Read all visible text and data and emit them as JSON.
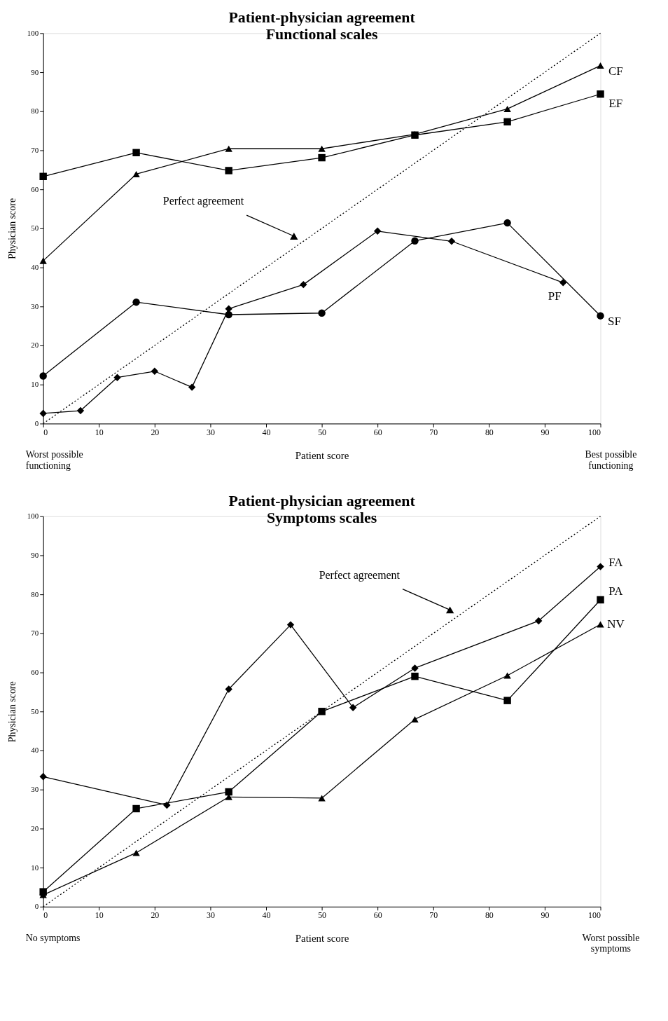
{
  "chart_data": [
    {
      "type": "line",
      "title": "Patient-physician agreement",
      "subtitle": "Functional scales",
      "xlabel": "Patient score",
      "ylabel": "Physician score",
      "xlim": [
        0,
        100
      ],
      "ylim": [
        0,
        100
      ],
      "xticks": [
        0,
        10,
        20,
        30,
        40,
        50,
        60,
        70,
        80,
        90,
        100
      ],
      "yticks": [
        0,
        10,
        20,
        30,
        40,
        50,
        60,
        70,
        80,
        90,
        100
      ],
      "grid": false,
      "legend": false,
      "series": [
        {
          "name": "CF",
          "color": "#000000",
          "marker": "triangle",
          "x": [
            0,
            16.7,
            33.3,
            50,
            66.7,
            83.3,
            100
          ],
          "values": [
            41.7,
            63.9,
            70.4,
            70.4,
            74.1,
            80.6,
            91.7
          ]
        },
        {
          "name": "EF",
          "color": "#000000",
          "marker": "square",
          "x": [
            0,
            16.7,
            33.3,
            50,
            66.7,
            83.3,
            100
          ],
          "values": [
            63.3,
            69.4,
            64.8,
            68.1,
            73.9,
            77.3,
            84.4
          ]
        },
        {
          "name": "PF",
          "color": "#000000",
          "marker": "diamond",
          "x": [
            0,
            6.7,
            13.3,
            20,
            26.7,
            33.3,
            46.7,
            60,
            73.3,
            93.3
          ],
          "values": [
            2.6,
            3.3,
            11.8,
            13.4,
            9.3,
            29.4,
            35.6,
            49.3,
            46.7,
            36.1
          ]
        },
        {
          "name": "SF",
          "color": "#000000",
          "marker": "circle",
          "x": [
            0,
            16.7,
            33.3,
            50,
            66.7,
            83.3,
            100
          ],
          "values": [
            12.2,
            31.1,
            27.9,
            28.3,
            46.8,
            51.4,
            27.6
          ]
        },
        {
          "color": "#000000",
          "marker": "none",
          "line_style": "dotted",
          "x": [
            0,
            100
          ],
          "values": [
            0,
            100
          ]
        }
      ],
      "annotations": [
        {
          "text": "Perfect agreement",
          "x": 45,
          "y": 48
        },
        "Worst possible\nfunctioning",
        "Best possible\nfunctioning"
      ]
    },
    {
      "type": "line",
      "title": "Patient-physician agreement",
      "subtitle": "Symptoms scales",
      "xlabel": "Patient score",
      "ylabel": "Physician score",
      "xlim": [
        0,
        100
      ],
      "ylim": [
        0,
        100
      ],
      "xticks": [
        0,
        10,
        20,
        30,
        40,
        50,
        60,
        70,
        80,
        90,
        100
      ],
      "yticks": [
        0,
        10,
        20,
        30,
        40,
        50,
        60,
        70,
        80,
        90,
        100
      ],
      "grid": false,
      "legend": false,
      "series": [
        {
          "name": "FA",
          "color": "#000000",
          "marker": "diamond",
          "x": [
            0,
            22.2,
            33.3,
            44.4,
            55.6,
            66.7,
            88.9,
            100
          ],
          "values": [
            33.3,
            26.0,
            55.7,
            72.2,
            51.0,
            61.1,
            73.2,
            87.1
          ]
        },
        {
          "name": "PA",
          "color": "#000000",
          "marker": "square",
          "x": [
            0,
            16.7,
            33.3,
            50,
            66.7,
            83.3,
            100
          ],
          "values": [
            3.8,
            25.1,
            29.4,
            50.0,
            59.0,
            52.8,
            78.6
          ]
        },
        {
          "name": "NV",
          "color": "#000000",
          "marker": "triangle",
          "x": [
            0,
            16.7,
            33.3,
            50,
            66.7,
            83.3,
            100
          ],
          "values": [
            3.0,
            13.8,
            28.1,
            27.8,
            48.0,
            59.2,
            72.3
          ]
        },
        {
          "type": "scatter",
          "color": "#000000",
          "marker": "diamond",
          "x": [
            0
          ],
          "values": [
            3.0
          ]
        },
        {
          "color": "#000000",
          "marker": "none",
          "line_style": "dotted",
          "x": [
            0,
            100
          ],
          "values": [
            0,
            100
          ]
        }
      ],
      "annotations": [
        {
          "text": "Perfect agreement",
          "x": 73,
          "y": 76
        },
        "No symptoms",
        "Worst possible\nsymptoms"
      ]
    }
  ]
}
